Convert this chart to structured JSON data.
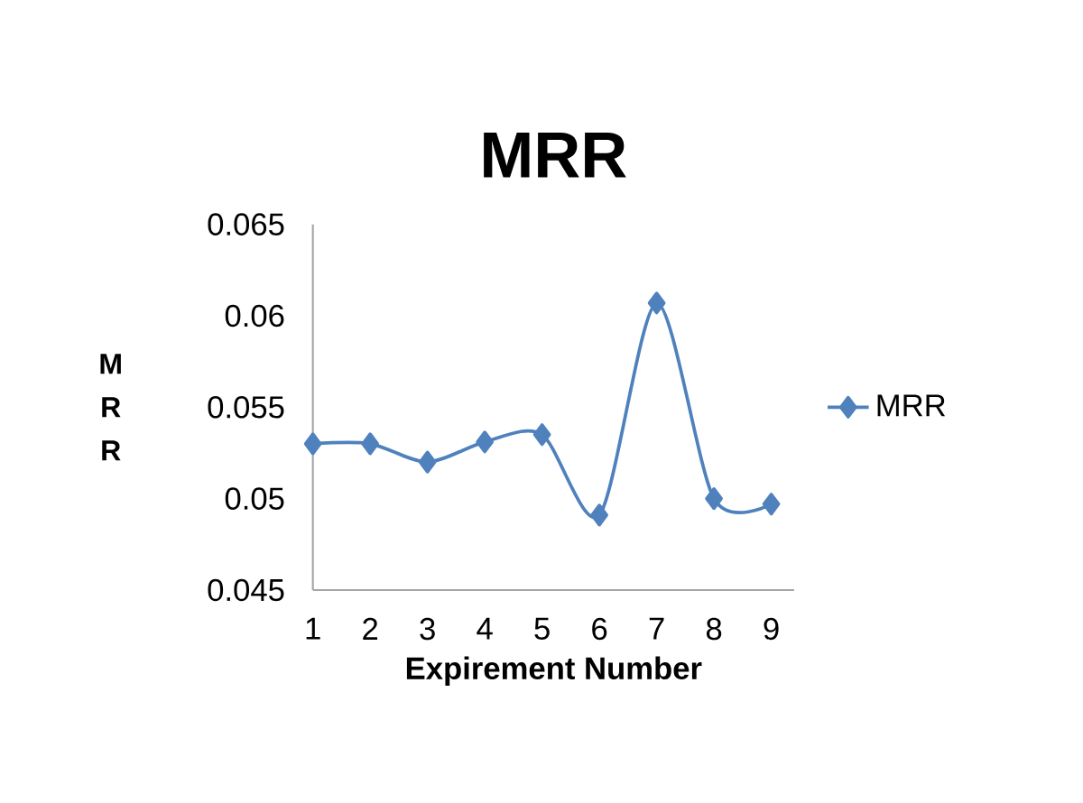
{
  "chart_data": {
    "type": "line",
    "title": "MRR",
    "xlabel": "Expirement Number",
    "ylabel": "M R R",
    "categories": [
      "1",
      "2",
      "3",
      "4",
      "5",
      "6",
      "7",
      "8",
      "9"
    ],
    "series": [
      {
        "name": "MRR",
        "color": "#4f81bd",
        "values": [
          0.053,
          0.053,
          0.052,
          0.0531,
          0.0535,
          0.0491,
          0.0607,
          0.05,
          0.0497
        ]
      }
    ],
    "ylim": [
      0.045,
      0.065
    ],
    "yticks": [
      0.045,
      0.05,
      0.055,
      0.06,
      0.065
    ],
    "marker": "diamond",
    "line_style": "solid",
    "legend": "right",
    "grid": false
  }
}
